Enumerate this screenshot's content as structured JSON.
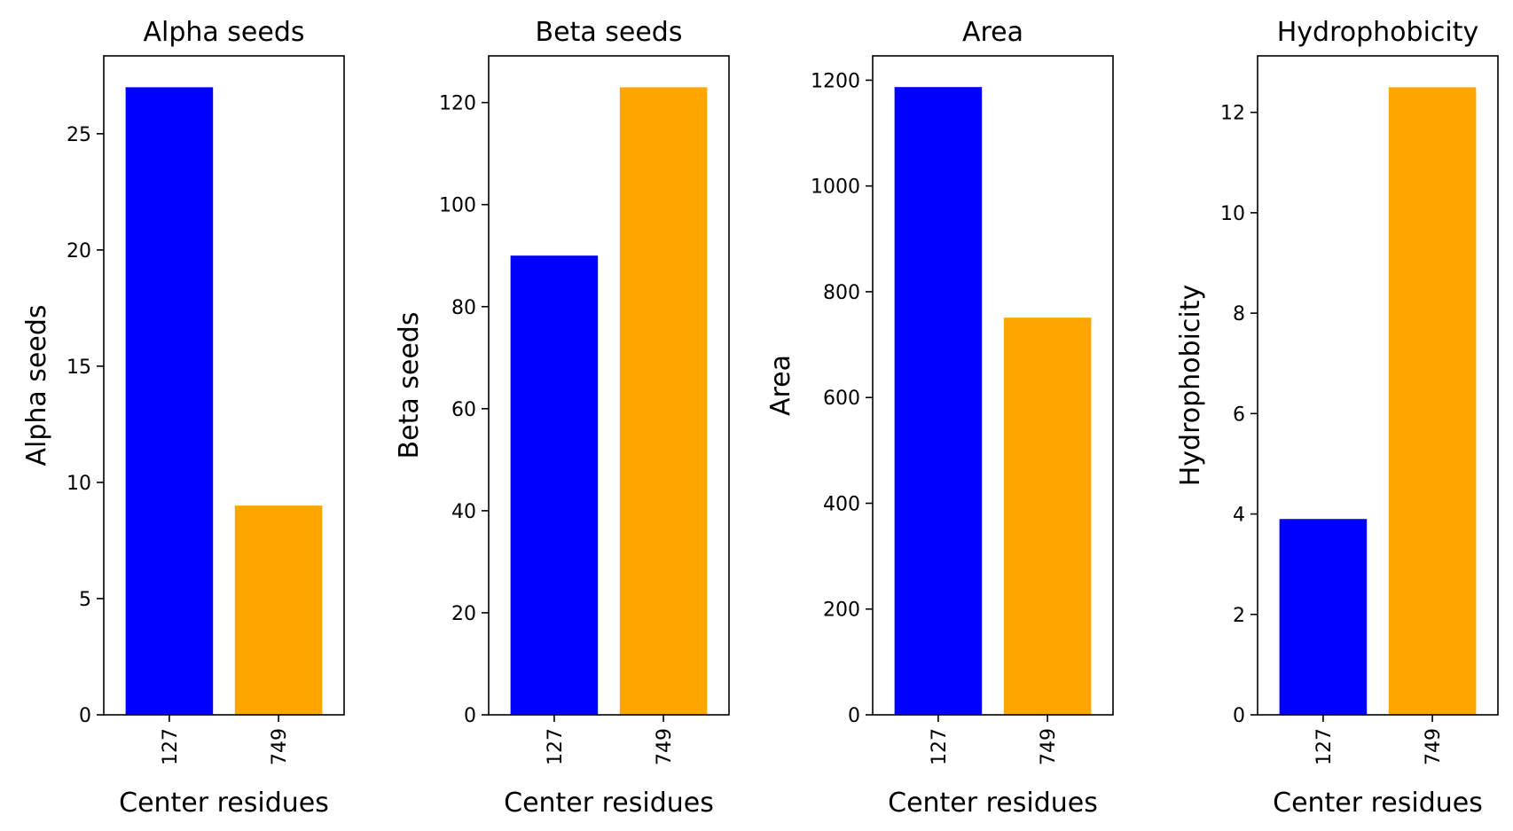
{
  "colors": {
    "series_a": "#0000ff",
    "series_b": "#ffa500",
    "axis": "#000000",
    "background": "#ffffff"
  },
  "chart_data": [
    {
      "type": "bar",
      "title": "Alpha seeds",
      "xlabel": "Center residues",
      "ylabel": "Alpha seeds",
      "categories": [
        "127",
        "749"
      ],
      "values": [
        27,
        9
      ],
      "ylim": [
        0,
        28.35
      ],
      "yticks": [
        0,
        5,
        10,
        15,
        20,
        25
      ],
      "bar_colors": [
        "#0000ff",
        "#ffa500"
      ],
      "grid": false
    },
    {
      "type": "bar",
      "title": "Beta seeds",
      "xlabel": "Center residues",
      "ylabel": "Beta seeds",
      "categories": [
        "127",
        "749"
      ],
      "values": [
        90,
        123
      ],
      "ylim": [
        0,
        129.15
      ],
      "yticks": [
        0,
        20,
        40,
        60,
        80,
        100,
        120
      ],
      "bar_colors": [
        "#0000ff",
        "#ffa500"
      ],
      "grid": false
    },
    {
      "type": "bar",
      "title": "Area",
      "xlabel": "Center residues",
      "ylabel": "Area",
      "categories": [
        "127",
        "749"
      ],
      "values": [
        1187,
        751
      ],
      "ylim": [
        0,
        1246
      ],
      "yticks": [
        0,
        200,
        400,
        600,
        800,
        1000,
        1200
      ],
      "bar_colors": [
        "#0000ff",
        "#ffa500"
      ],
      "grid": false
    },
    {
      "type": "bar",
      "title": "Hydrophobicity",
      "xlabel": "Center residues",
      "ylabel": "Hydrophobicity",
      "categories": [
        "127",
        "749"
      ],
      "values": [
        3.9,
        12.5
      ],
      "ylim": [
        0,
        13.125
      ],
      "yticks": [
        0,
        2,
        4,
        6,
        8,
        10,
        12
      ],
      "bar_colors": [
        "#0000ff",
        "#ffa500"
      ],
      "grid": false
    }
  ]
}
